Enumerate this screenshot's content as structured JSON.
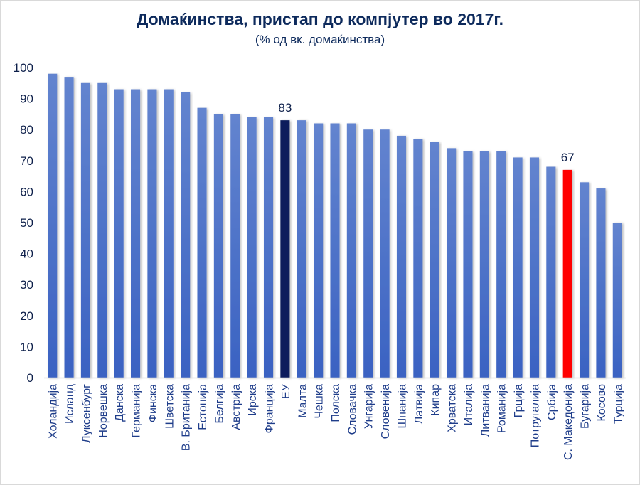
{
  "chart_data": {
    "type": "bar",
    "title": "Домаќинства, пристап до компјутер во 2017г.",
    "subtitle": "(% од вк. домаќинства)",
    "xlabel": "",
    "ylabel": "",
    "ylim": [
      0,
      100
    ],
    "yticks": [
      0,
      10,
      20,
      30,
      40,
      50,
      60,
      70,
      80,
      90,
      100
    ],
    "grid": false,
    "legend": "none",
    "categories": [
      "Холандија",
      "Исланд",
      "Луксенбург",
      "Норвешка",
      "Данска",
      "Германија",
      "Финска",
      "Шветска",
      "В. Британија",
      "Естонија",
      "Белгија",
      "Австрија",
      "Ирска",
      "Франција",
      "ЕУ",
      "Малта",
      "Чешка",
      "Полска",
      "Словачка",
      "Унгарија",
      "Словенија",
      "Шпанија",
      "Латвија",
      "Кипар",
      "Хрватска",
      "Италија",
      "Литванија",
      "Романија",
      "Грција",
      "Потругалија",
      "Србија",
      "С. Македонија",
      "Бугарија",
      "Косово",
      "Турција"
    ],
    "values": [
      98,
      97,
      95,
      95,
      93,
      93,
      93,
      93,
      92,
      87,
      85,
      85,
      84,
      84,
      83,
      83,
      82,
      82,
      82,
      80,
      80,
      78,
      77,
      76,
      74,
      73,
      73,
      73,
      71,
      71,
      68,
      67,
      63,
      61,
      50
    ],
    "highlights": [
      {
        "category": "ЕУ",
        "color": "#0a1f5c",
        "label": "83"
      },
      {
        "category": "С. Македонија",
        "color": "#ff0000",
        "label": "67"
      }
    ],
    "colors": {
      "bar_top": "#6384cf",
      "bar_bottom": "#3a62c2",
      "axis": "#d9d9d9",
      "text": "#0d2a5c"
    }
  }
}
